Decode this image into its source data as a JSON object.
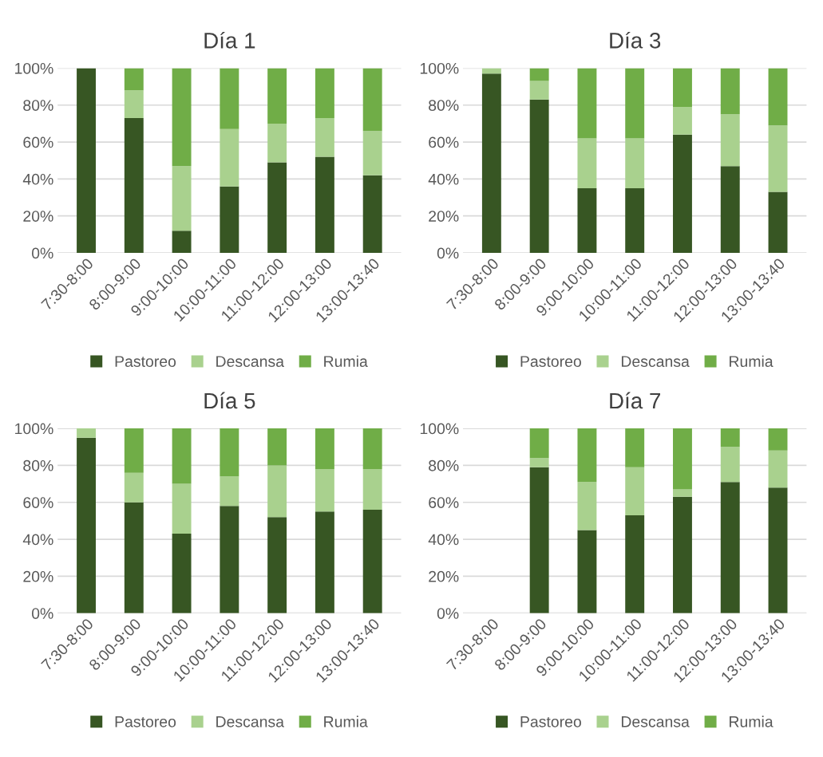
{
  "chart_data": [
    {
      "type": "bar",
      "title": "Día 1",
      "stacked": true,
      "grid": "y",
      "legend": "bottom",
      "categories": [
        "7:30-8:00",
        "8:00-9:00",
        "9:00-10:00",
        "10:00-11:00",
        "11:00-12:00",
        "12:00-13:00",
        "13:00-13:40"
      ],
      "ylim": [
        0,
        100
      ],
      "yticks": [
        {
          "value": 0,
          "label": "0%"
        },
        {
          "value": 20,
          "label": "20%"
        },
        {
          "value": 40,
          "label": "40%"
        },
        {
          "value": 60,
          "label": "60%"
        },
        {
          "value": 80,
          "label": "80%"
        },
        {
          "value": 100,
          "label": "100%"
        }
      ],
      "series": [
        {
          "name": "Pastoreo",
          "color": "#375623",
          "values": [
            100,
            73,
            12,
            36,
            49,
            52,
            42
          ]
        },
        {
          "name": "Descansa",
          "color": "#a9d18e",
          "values": [
            0,
            15,
            35,
            31,
            21,
            21,
            24
          ]
        },
        {
          "name": "Rumia",
          "color": "#70ad47",
          "values": [
            0,
            12,
            53,
            33,
            30,
            27,
            34
          ]
        }
      ]
    },
    {
      "type": "bar",
      "title": "Día 3",
      "stacked": true,
      "grid": "y",
      "legend": "bottom",
      "categories": [
        "7:30-8:00",
        "8:00-9:00",
        "9:00-10:00",
        "10:00-11:00",
        "11:00-12:00",
        "12:00-13:00",
        "13:00-13:40"
      ],
      "ylim": [
        0,
        100
      ],
      "yticks": [
        {
          "value": 0,
          "label": "0%"
        },
        {
          "value": 20,
          "label": "20%"
        },
        {
          "value": 40,
          "label": "40%"
        },
        {
          "value": 60,
          "label": "60%"
        },
        {
          "value": 80,
          "label": "80%"
        },
        {
          "value": 100,
          "label": "100%"
        }
      ],
      "series": [
        {
          "name": "Pastoreo",
          "color": "#375623",
          "values": [
            97,
            83,
            35,
            35,
            64,
            47,
            33
          ]
        },
        {
          "name": "Descansa",
          "color": "#a9d18e",
          "values": [
            3,
            10,
            27,
            27,
            15,
            28,
            36
          ]
        },
        {
          "name": "Rumia",
          "color": "#70ad47",
          "values": [
            0,
            7,
            38,
            38,
            21,
            25,
            31
          ]
        }
      ]
    },
    {
      "type": "bar",
      "title": "Día 5",
      "stacked": true,
      "grid": "y",
      "legend": "bottom",
      "categories": [
        "7:30-8:00",
        "8:00-9:00",
        "9:00-10:00",
        "10:00-11:00",
        "11:00-12:00",
        "12:00-13:00",
        "13:00-13:40"
      ],
      "ylim": [
        0,
        100
      ],
      "yticks": [
        {
          "value": 0,
          "label": "0%"
        },
        {
          "value": 20,
          "label": "20%"
        },
        {
          "value": 40,
          "label": "40%"
        },
        {
          "value": 60,
          "label": "60%"
        },
        {
          "value": 80,
          "label": "80%"
        },
        {
          "value": 100,
          "label": "100%"
        }
      ],
      "series": [
        {
          "name": "Pastoreo",
          "color": "#375623",
          "values": [
            95,
            60,
            43,
            58,
            52,
            55,
            56
          ]
        },
        {
          "name": "Descansa",
          "color": "#a9d18e",
          "values": [
            5,
            16,
            27,
            16,
            28,
            23,
            22
          ]
        },
        {
          "name": "Rumia",
          "color": "#70ad47",
          "values": [
            0,
            24,
            30,
            26,
            20,
            22,
            22
          ]
        }
      ]
    },
    {
      "type": "bar",
      "title": "Día 7",
      "stacked": true,
      "grid": "y",
      "legend": "bottom",
      "categories": [
        "7:30-8:00",
        "8:00-9:00",
        "9:00-10:00",
        "10:00-11:00",
        "11:00-12:00",
        "12:00-13:00",
        "13:00-13:40"
      ],
      "ylim": [
        0,
        100
      ],
      "yticks": [
        {
          "value": 0,
          "label": "0%"
        },
        {
          "value": 20,
          "label": "20%"
        },
        {
          "value": 40,
          "label": "40%"
        },
        {
          "value": 60,
          "label": "60%"
        },
        {
          "value": 80,
          "label": "80%"
        },
        {
          "value": 100,
          "label": "100%"
        }
      ],
      "series": [
        {
          "name": "Pastoreo",
          "color": "#375623",
          "values": [
            null,
            79,
            45,
            53,
            63,
            71,
            68
          ]
        },
        {
          "name": "Descansa",
          "color": "#a9d18e",
          "values": [
            null,
            5,
            26,
            26,
            4,
            19,
            20
          ]
        },
        {
          "name": "Rumia",
          "color": "#70ad47",
          "values": [
            null,
            16,
            29,
            21,
            33,
            10,
            12
          ]
        }
      ]
    }
  ]
}
